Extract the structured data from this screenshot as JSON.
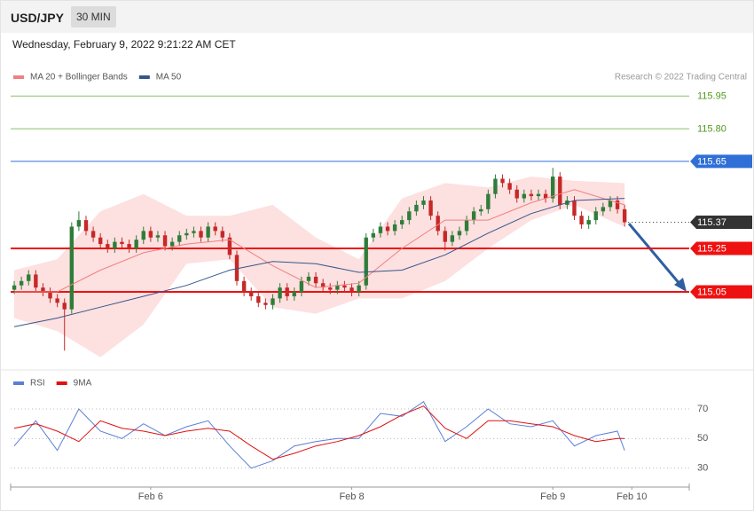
{
  "header": {
    "symbol": "USD/JPY",
    "interval": "30 MIN",
    "datetime": "Wednesday, February 9, 2022 9:21:22 AM CET"
  },
  "chart_data": [
    {
      "type": "candlestick",
      "source": "Research © 2022 Trading Central",
      "up_color": "#2f7d3a",
      "down_color": "#c62828",
      "xlim": [
        -0.5,
        94
      ],
      "ylim": [
        114.72,
        116.0
      ],
      "x": [
        0,
        1,
        2,
        3,
        4,
        5,
        6,
        7,
        8,
        9,
        10,
        11,
        12,
        13,
        14,
        15,
        16,
        17,
        18,
        19,
        20,
        21,
        22,
        23,
        24,
        25,
        26,
        27,
        28,
        29,
        30,
        31,
        32,
        33,
        34,
        35,
        36,
        37,
        38,
        39,
        40,
        41,
        42,
        43,
        44,
        45,
        46,
        47,
        48,
        49,
        50,
        51,
        52,
        53,
        54,
        55,
        56,
        57,
        58,
        59,
        60,
        61,
        62,
        63,
        64,
        65,
        66,
        67,
        68,
        69,
        70,
        71,
        72,
        73,
        74,
        75,
        76,
        77,
        78,
        79,
        80,
        81,
        82,
        83,
        84,
        85
      ],
      "open": [
        115.06,
        115.08,
        115.1,
        115.13,
        115.07,
        115.05,
        115.02,
        115.0,
        114.97,
        115.35,
        115.38,
        115.33,
        115.3,
        115.27,
        115.25,
        115.28,
        115.27,
        115.25,
        115.29,
        115.33,
        115.3,
        115.31,
        115.26,
        115.28,
        115.31,
        115.32,
        115.33,
        115.3,
        115.35,
        115.33,
        115.3,
        115.22,
        115.1,
        115.05,
        115.03,
        115.0,
        114.99,
        115.02,
        115.07,
        115.03,
        115.05,
        115.1,
        115.12,
        115.09,
        115.07,
        115.06,
        115.08,
        115.07,
        115.05,
        115.08,
        115.3,
        115.32,
        115.35,
        115.33,
        115.36,
        115.38,
        115.42,
        115.45,
        115.47,
        115.4,
        115.33,
        115.28,
        115.31,
        115.33,
        115.38,
        115.42,
        115.43,
        115.5,
        115.57,
        115.55,
        115.52,
        115.48,
        115.5,
        115.49,
        115.5,
        115.48,
        115.58,
        115.45,
        115.47,
        115.4,
        115.36,
        115.38,
        115.42,
        115.44,
        115.47,
        115.43
      ],
      "high": [
        115.1,
        115.12,
        115.15,
        115.15,
        115.09,
        115.07,
        115.04,
        115.02,
        115.37,
        115.42,
        115.4,
        115.35,
        115.32,
        115.29,
        115.3,
        115.3,
        115.29,
        115.31,
        115.35,
        115.35,
        115.33,
        115.33,
        115.3,
        115.33,
        115.34,
        115.35,
        115.35,
        115.37,
        115.37,
        115.35,
        115.32,
        115.24,
        115.12,
        115.07,
        115.05,
        115.02,
        115.04,
        115.09,
        115.09,
        115.07,
        115.12,
        115.14,
        115.14,
        115.11,
        115.09,
        115.1,
        115.1,
        115.09,
        115.1,
        115.32,
        115.34,
        115.37,
        115.37,
        115.38,
        115.4,
        115.44,
        115.47,
        115.49,
        115.49,
        115.42,
        115.35,
        115.33,
        115.35,
        115.4,
        115.44,
        115.45,
        115.52,
        115.59,
        115.59,
        115.57,
        115.54,
        115.52,
        115.52,
        115.52,
        115.52,
        115.62,
        115.6,
        115.49,
        115.49,
        115.42,
        115.4,
        115.44,
        115.46,
        115.49,
        115.49,
        115.45
      ],
      "low": [
        115.04,
        115.06,
        115.08,
        115.05,
        115.03,
        115.0,
        114.98,
        114.78,
        114.95,
        115.33,
        115.31,
        115.28,
        115.25,
        115.23,
        115.23,
        115.25,
        115.23,
        115.23,
        115.27,
        115.28,
        115.28,
        115.24,
        115.24,
        115.26,
        115.29,
        115.3,
        115.28,
        115.28,
        115.31,
        115.28,
        115.2,
        115.08,
        115.03,
        115.01,
        114.98,
        114.97,
        114.97,
        115.0,
        115.01,
        115.01,
        115.03,
        115.08,
        115.07,
        115.05,
        115.04,
        115.04,
        115.05,
        115.03,
        115.03,
        115.06,
        115.28,
        115.3,
        115.31,
        115.31,
        115.34,
        115.36,
        115.4,
        115.43,
        115.38,
        115.31,
        115.24,
        115.26,
        115.29,
        115.31,
        115.36,
        115.4,
        115.41,
        115.48,
        115.53,
        115.5,
        115.46,
        115.46,
        115.47,
        115.47,
        115.46,
        115.46,
        115.43,
        115.43,
        115.38,
        115.34,
        115.34,
        115.36,
        115.4,
        115.42,
        115.41,
        115.35
      ],
      "close": [
        115.08,
        115.1,
        115.13,
        115.07,
        115.05,
        115.02,
        115.0,
        114.97,
        115.35,
        115.38,
        115.33,
        115.3,
        115.27,
        115.25,
        115.28,
        115.27,
        115.25,
        115.29,
        115.33,
        115.3,
        115.31,
        115.26,
        115.28,
        115.31,
        115.32,
        115.33,
        115.3,
        115.35,
        115.33,
        115.3,
        115.22,
        115.1,
        115.05,
        115.03,
        115.0,
        114.99,
        115.02,
        115.07,
        115.03,
        115.05,
        115.1,
        115.12,
        115.09,
        115.07,
        115.06,
        115.08,
        115.07,
        115.05,
        115.08,
        115.3,
        115.32,
        115.35,
        115.33,
        115.36,
        115.38,
        115.42,
        115.45,
        115.47,
        115.4,
        115.33,
        115.28,
        115.31,
        115.33,
        115.38,
        115.42,
        115.43,
        115.5,
        115.57,
        115.55,
        115.52,
        115.48,
        115.5,
        115.49,
        115.5,
        115.48,
        115.58,
        115.45,
        115.47,
        115.4,
        115.36,
        115.38,
        115.42,
        115.44,
        115.47,
        115.43,
        115.37
      ],
      "series": [
        {
          "name": "MA 20 + Bollinger Bands",
          "color": "#f08080",
          "band_color": "#fde0e0",
          "x": [
            0,
            6,
            12,
            18,
            24,
            30,
            36,
            42,
            48,
            54,
            60,
            66,
            72,
            78,
            85
          ],
          "values": [
            115.05,
            115.05,
            115.15,
            115.23,
            115.27,
            115.29,
            115.17,
            115.07,
            115.09,
            115.25,
            115.38,
            115.38,
            115.46,
            115.52,
            115.45
          ],
          "upper": [
            115.15,
            115.2,
            115.42,
            115.5,
            115.4,
            115.4,
            115.45,
            115.3,
            115.2,
            115.48,
            115.55,
            115.53,
            115.58,
            115.56,
            115.55
          ],
          "lower": [
            114.93,
            114.87,
            114.75,
            114.9,
            115.18,
            115.2,
            114.98,
            114.95,
            115.02,
            115.02,
            115.1,
            115.25,
            115.38,
            115.45,
            115.35
          ]
        },
        {
          "name": "MA 50",
          "color": "#34568b",
          "x": [
            0,
            6,
            12,
            18,
            24,
            30,
            36,
            42,
            48,
            54,
            60,
            66,
            72,
            78,
            85
          ],
          "values": [
            114.89,
            114.93,
            114.98,
            115.03,
            115.08,
            115.15,
            115.19,
            115.18,
            115.14,
            115.15,
            115.22,
            115.32,
            115.41,
            115.47,
            115.48
          ]
        }
      ],
      "levels": [
        {
          "value": 115.95,
          "color": "#8dbf6a",
          "text_color": "#4e9a1e",
          "line": "solid",
          "box": false
        },
        {
          "value": 115.8,
          "label": "115.80",
          "color": "#8dbf6a",
          "text_color": "#4e9a1e",
          "line": "solid",
          "box": false
        },
        {
          "value": 115.65,
          "color": "#2f6fd6",
          "text_color": "#ffffff",
          "line": "solid",
          "box": true
        },
        {
          "value": 115.37,
          "color": "#333333",
          "text_color": "#ffffff",
          "line": "dotted",
          "box": true
        },
        {
          "value": 115.25,
          "color": "#ee1111",
          "text_color": "#ffffff",
          "line": "thick",
          "box": true
        },
        {
          "value": 115.05,
          "color": "#ee1111",
          "text_color": "#ffffff",
          "line": "thick",
          "box": true
        }
      ]
    },
    {
      "type": "line",
      "xlim": [
        -0.5,
        94
      ],
      "ylim": [
        22,
        79
      ],
      "yticks": [
        70,
        50,
        30
      ],
      "xticks": [
        {
          "value": 19,
          "label": "Feb 6"
        },
        {
          "value": 47,
          "label": "Feb 8"
        },
        {
          "value": 75,
          "label": "Feb 9"
        },
        {
          "value": 86,
          "label": "Feb 10"
        }
      ],
      "series": [
        {
          "name": "RSI",
          "color": "#5b7fd6",
          "x": [
            0,
            3,
            6,
            9,
            12,
            15,
            18,
            21,
            24,
            27,
            30,
            33,
            36,
            39,
            42,
            45,
            48,
            51,
            54,
            57,
            60,
            63,
            66,
            69,
            72,
            75,
            78,
            81,
            84,
            85
          ],
          "values": [
            45,
            62,
            42,
            70,
            55,
            50,
            60,
            52,
            58,
            62,
            45,
            30,
            35,
            45,
            48,
            50,
            50,
            67,
            65,
            75,
            48,
            58,
            70,
            60,
            58,
            62,
            45,
            52,
            55,
            42
          ]
        },
        {
          "name": "9MA",
          "color": "#e01010",
          "x": [
            0,
            3,
            6,
            9,
            12,
            15,
            18,
            21,
            24,
            27,
            30,
            33,
            36,
            39,
            42,
            45,
            48,
            51,
            54,
            57,
            60,
            63,
            66,
            69,
            72,
            75,
            78,
            81,
            84,
            85
          ],
          "values": [
            57,
            60,
            55,
            48,
            62,
            57,
            55,
            52,
            55,
            57,
            55,
            45,
            36,
            40,
            45,
            48,
            52,
            58,
            66,
            72,
            57,
            50,
            62,
            62,
            60,
            58,
            52,
            48,
            50,
            50
          ]
        }
      ]
    }
  ]
}
